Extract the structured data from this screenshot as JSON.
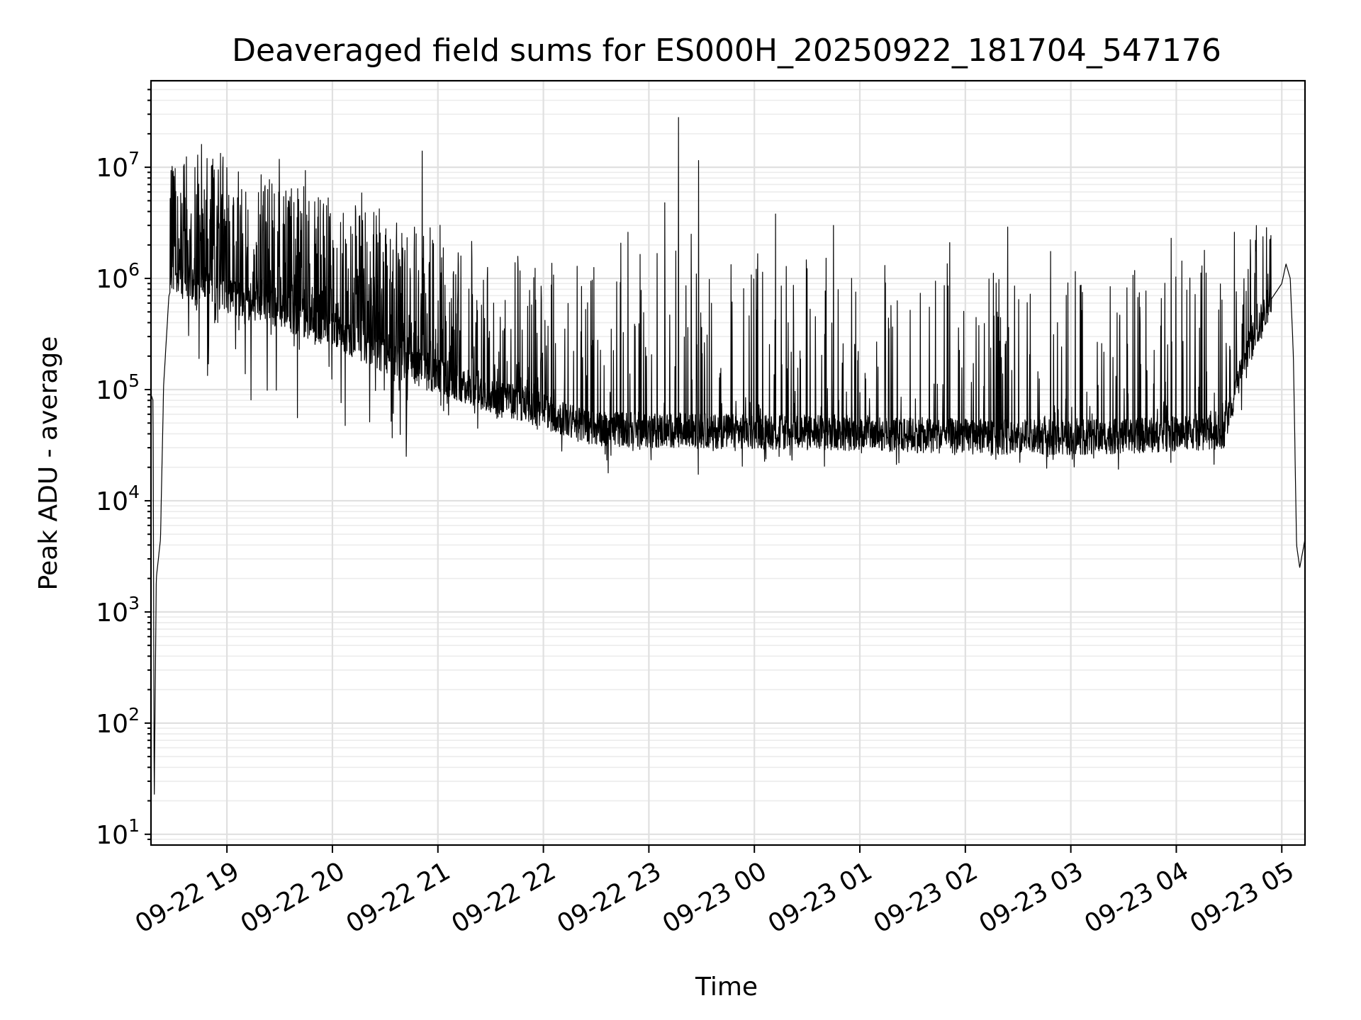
{
  "chart_data": {
    "type": "line",
    "title": "Deaveraged field sums for ES000H_20250922_181704_547176",
    "xlabel": "Time",
    "ylabel": "Peak ADU - average",
    "yscale": "log",
    "ylim": [
      8,
      60000000
    ],
    "y_ticks": [
      {
        "base": "10",
        "exp": "1",
        "value": 10
      },
      {
        "base": "10",
        "exp": "2",
        "value": 100
      },
      {
        "base": "10",
        "exp": "3",
        "value": 1000
      },
      {
        "base": "10",
        "exp": "4",
        "value": 10000
      },
      {
        "base": "10",
        "exp": "5",
        "value": 100000
      },
      {
        "base": "10",
        "exp": "6",
        "value": 1000000
      },
      {
        "base": "10",
        "exp": "7",
        "value": 10000000
      }
    ],
    "x_unit": "hours since 09-22 18:00",
    "xlim": [
      0.28,
      11.22
    ],
    "x_ticks": [
      {
        "label": "09-22 19",
        "value": 1
      },
      {
        "label": "09-22 20",
        "value": 2
      },
      {
        "label": "09-22 21",
        "value": 3
      },
      {
        "label": "09-22 22",
        "value": 4
      },
      {
        "label": "09-22 23",
        "value": 5
      },
      {
        "label": "09-23 00",
        "value": 6
      },
      {
        "label": "09-23 01",
        "value": 7
      },
      {
        "label": "09-23 02",
        "value": 8
      },
      {
        "label": "09-23 03",
        "value": 9
      },
      {
        "label": "09-23 04",
        "value": 10
      },
      {
        "label": "09-23 05",
        "value": 11
      }
    ],
    "grid": true,
    "series": [
      {
        "name": "deaveraged field sum",
        "color": "#000000",
        "envelope": [
          {
            "x": 0.28,
            "y": 90000
          },
          {
            "x": 0.3,
            "y": 80000
          },
          {
            "x": 0.31,
            "y": 17
          },
          {
            "x": 0.33,
            "y": 2000
          },
          {
            "x": 0.37,
            "y": 4500
          },
          {
            "x": 0.4,
            "y": 110000
          },
          {
            "x": 0.45,
            "y": 700000
          },
          {
            "x": 0.52,
            "y": 1100000
          },
          {
            "x": 0.6,
            "y": 900000
          },
          {
            "x": 0.7,
            "y": 850000
          },
          {
            "x": 1.0,
            "y": 700000
          },
          {
            "x": 1.5,
            "y": 500000
          },
          {
            "x": 2.0,
            "y": 350000
          },
          {
            "x": 2.5,
            "y": 200000
          },
          {
            "x": 3.0,
            "y": 130000
          },
          {
            "x": 3.5,
            "y": 90000
          },
          {
            "x": 4.0,
            "y": 65000
          },
          {
            "x": 4.3,
            "y": 50000
          },
          {
            "x": 4.5,
            "y": 45000
          },
          {
            "x": 5.0,
            "y": 43000
          },
          {
            "x": 6.0,
            "y": 42000
          },
          {
            "x": 7.0,
            "y": 40000
          },
          {
            "x": 8.0,
            "y": 38000
          },
          {
            "x": 9.0,
            "y": 37000
          },
          {
            "x": 9.5,
            "y": 38000
          },
          {
            "x": 10.0,
            "y": 40000
          },
          {
            "x": 10.45,
            "y": 42000
          },
          {
            "x": 10.55,
            "y": 90000
          },
          {
            "x": 10.7,
            "y": 250000
          },
          {
            "x": 10.9,
            "y": 650000
          },
          {
            "x": 11.0,
            "y": 900000
          },
          {
            "x": 11.04,
            "y": 1350000
          },
          {
            "x": 11.08,
            "y": 1000000
          },
          {
            "x": 11.11,
            "y": 200000
          },
          {
            "x": 11.14,
            "y": 4000
          },
          {
            "x": 11.17,
            "y": 2500
          },
          {
            "x": 11.22,
            "y": 4500
          }
        ],
        "spikes": [
          {
            "x": 0.63,
            "y": 2200000
          },
          {
            "x": 0.75,
            "y": 2400000
          },
          {
            "x": 1.7,
            "y": 2700000
          },
          {
            "x": 2.85,
            "y": 14000000
          },
          {
            "x": 4.8,
            "y": 2600000
          },
          {
            "x": 5.15,
            "y": 4800000
          },
          {
            "x": 5.28,
            "y": 28000000
          },
          {
            "x": 5.4,
            "y": 2500000
          },
          {
            "x": 5.47,
            "y": 11500000
          },
          {
            "x": 6.2,
            "y": 3800000
          },
          {
            "x": 6.75,
            "y": 3000000
          },
          {
            "x": 7.85,
            "y": 2100000
          },
          {
            "x": 8.4,
            "y": 2900000
          },
          {
            "x": 9.95,
            "y": 2300000
          },
          {
            "x": 10.55,
            "y": 2600000
          },
          {
            "x": 10.75,
            "y": 2200000
          }
        ]
      }
    ]
  }
}
